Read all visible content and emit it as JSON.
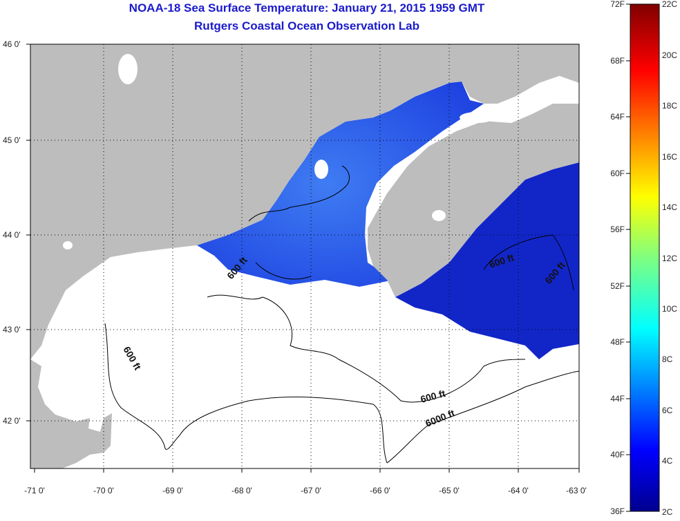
{
  "title": {
    "line1": "NOAA-18 Sea Surface Temperature:  January 21, 2015 1959 GMT",
    "line2": "Rutgers Coastal Ocean Observation Lab"
  },
  "axes": {
    "lon_ticks": [
      "-71 0'",
      "-70 0'",
      "-69 0'",
      "-68 0'",
      "-67 0'",
      "-66 0'",
      "-65 0'",
      "-64 0'",
      "-63 0'"
    ],
    "lat_ticks": [
      "46 0'",
      "45 0'",
      "44 0'",
      "43 0'",
      "42 0'"
    ]
  },
  "colorbar": {
    "fahrenheit": [
      "72F",
      "68F",
      "64F",
      "60F",
      "56F",
      "52F",
      "48F",
      "44F",
      "40F",
      "36F"
    ],
    "celsius": [
      "22C",
      "20C",
      "18C",
      "16C",
      "14C",
      "12C",
      "10C",
      "8C",
      "6C",
      "4C",
      "2C"
    ]
  },
  "contours": [
    "600 ft",
    "600 ft",
    "600 ft",
    "600 ft",
    "600 ft",
    "6000 ft"
  ],
  "colors": {
    "land": "#bdbdbd",
    "ocean_no_data": "#ffffff",
    "sst_primary": "#2457f0",
    "sst_cold": "#1020c0",
    "title": "#1a1acc"
  }
}
